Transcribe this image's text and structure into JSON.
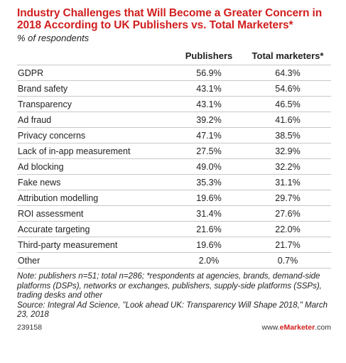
{
  "chart_data": {
    "type": "table",
    "title": "Industry Challenges that Will Become a Greater Concern in 2018 According to UK Publishers vs. Total Marketers*",
    "subtitle": "% of respondents",
    "columns": [
      "Publishers",
      "Total marketers*"
    ],
    "rows": [
      {
        "label": "GDPR",
        "values": [
          "56.9%",
          "64.3%"
        ]
      },
      {
        "label": "Brand safety",
        "values": [
          "43.1%",
          "54.6%"
        ]
      },
      {
        "label": "Transparency",
        "values": [
          "43.1%",
          "46.5%"
        ]
      },
      {
        "label": "Ad fraud",
        "values": [
          "39.2%",
          "41.6%"
        ]
      },
      {
        "label": "Privacy concerns",
        "values": [
          "47.1%",
          "38.5%"
        ]
      },
      {
        "label": "Lack of in-app measurement",
        "values": [
          "27.5%",
          "32.9%"
        ]
      },
      {
        "label": "Ad blocking",
        "values": [
          "49.0%",
          "32.2%"
        ]
      },
      {
        "label": "Fake news",
        "values": [
          "35.3%",
          "31.1%"
        ]
      },
      {
        "label": "Attribution modelling",
        "values": [
          "19.6%",
          "29.7%"
        ]
      },
      {
        "label": "ROI assessment",
        "values": [
          "31.4%",
          "27.6%"
        ]
      },
      {
        "label": "Accurate targeting",
        "values": [
          "21.6%",
          "22.0%"
        ]
      },
      {
        "label": "Third-party measurement",
        "values": [
          "19.6%",
          "21.7%"
        ]
      },
      {
        "label": "Other",
        "values": [
          "2.0%",
          "0.7%"
        ]
      }
    ]
  },
  "note": "Note: publishers n=51; total n=286; *respondents at agencies, brands, demand-side platforms (DSPs), networks or exchanges, publishers, supply-side platforms (SSPs), trading desks and other",
  "source": "Source: Integral Ad Science, \"Look ahead UK: Transparency Will Shape 2018,\" March 23, 2018",
  "chart_id": "239158",
  "brand": {
    "prefix": "www.",
    "name": "eMarketer",
    "suffix": ".com"
  },
  "colors": {
    "title": "#d11f1f",
    "rule": "#c8c8c8"
  }
}
